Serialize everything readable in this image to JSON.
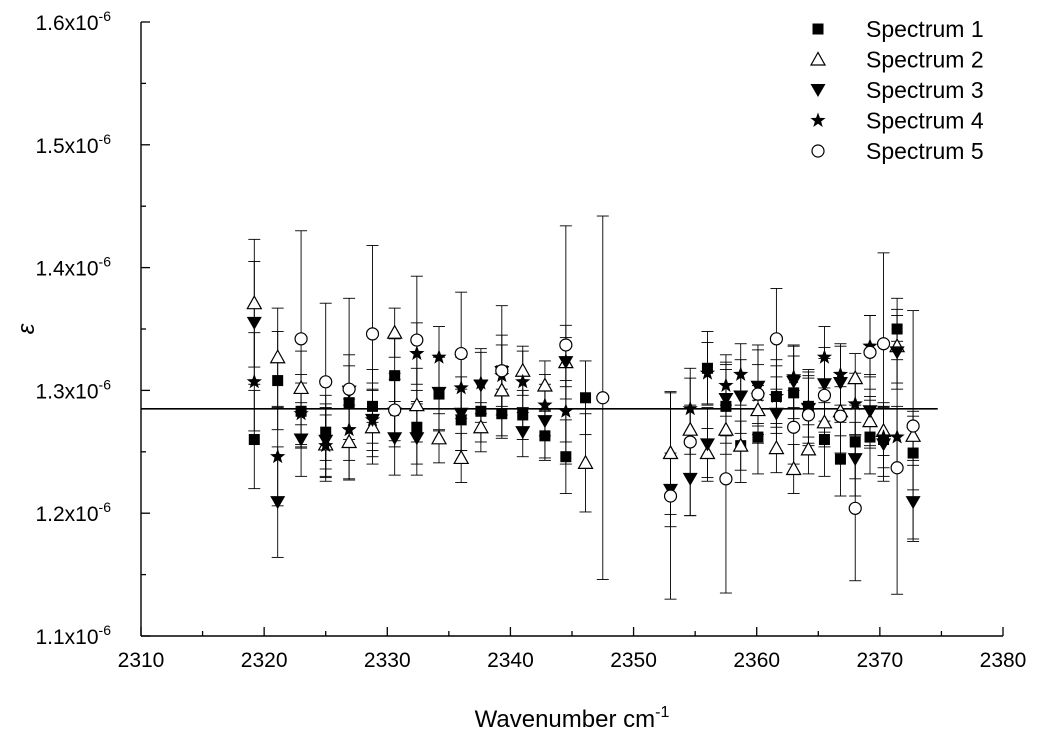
{
  "chart_data": {
    "type": "scatter",
    "xlabel": "Wavenumber cm",
    "xlabel_sup": "-1",
    "ylabel": "ε",
    "xlim": [
      2310,
      2380
    ],
    "ylim": [
      1.1e-06,
      1.6e-06
    ],
    "x_ticks": [
      2310,
      2320,
      2330,
      2340,
      2350,
      2360,
      2370,
      2380
    ],
    "y_ticks": [
      {
        "value": 1.1e-06,
        "mantissa": "1.1x10",
        "exp": "-6"
      },
      {
        "value": 1.2e-06,
        "mantissa": "1.2x10",
        "exp": "-6"
      },
      {
        "value": 1.3e-06,
        "mantissa": "1.3x10",
        "exp": "-6"
      },
      {
        "value": 1.4e-06,
        "mantissa": "1.4x10",
        "exp": "-6"
      },
      {
        "value": 1.5e-06,
        "mantissa": "1.5x10",
        "exp": "-6"
      },
      {
        "value": 1.6e-06,
        "mantissa": "1.6x10",
        "exp": "-6"
      }
    ],
    "reference_line": {
      "y": 1.285e-06,
      "x_range": [
        2310,
        2374.7
      ]
    },
    "legend_position": "top-right",
    "series": [
      {
        "name": "Spectrum 1",
        "marker": "square-filled",
        "points": [
          {
            "x": 2319.2,
            "y": 1.26e-06,
            "err": 4e-08
          },
          {
            "x": 2321.1,
            "y": 1.308e-06,
            "err": 4e-08
          },
          {
            "x": 2323.0,
            "y": 1.283e-06,
            "err": 3e-08
          },
          {
            "x": 2325.0,
            "y": 1.266e-06,
            "err": 3e-08
          },
          {
            "x": 2326.9,
            "y": 1.29e-06,
            "err": 3e-08
          },
          {
            "x": 2328.8,
            "y": 1.287e-06,
            "err": 3e-08
          },
          {
            "x": 2330.6,
            "y": 1.312e-06,
            "err": 3e-08
          },
          {
            "x": 2332.4,
            "y": 1.27e-06,
            "err": 3e-08
          },
          {
            "x": 2334.2,
            "y": 1.297e-06,
            "err": 3e-08
          },
          {
            "x": 2336.0,
            "y": 1.276e-06,
            "err": 2.5e-08
          },
          {
            "x": 2337.6,
            "y": 1.283e-06,
            "err": 2.5e-08
          },
          {
            "x": 2339.3,
            "y": 1.281e-06,
            "err": 2e-08
          },
          {
            "x": 2341.0,
            "y": 1.28e-06,
            "err": 2e-08
          },
          {
            "x": 2342.8,
            "y": 1.263e-06,
            "err": 2e-08
          },
          {
            "x": 2344.5,
            "y": 1.246e-06,
            "err": 3e-08
          },
          {
            "x": 2346.1,
            "y": 1.294e-06,
            "err": 3e-08
          },
          {
            "x": 2356.0,
            "y": 1.318e-06,
            "err": 3e-08
          },
          {
            "x": 2357.5,
            "y": 1.287e-06,
            "err": 3e-08
          },
          {
            "x": 2358.7,
            "y": 1.255e-06,
            "err": 3e-08
          },
          {
            "x": 2360.1,
            "y": 1.262e-06,
            "err": 3e-08
          },
          {
            "x": 2361.6,
            "y": 1.295e-06,
            "err": 3e-08
          },
          {
            "x": 2363.0,
            "y": 1.298e-06,
            "err": 3e-08
          },
          {
            "x": 2364.2,
            "y": 1.287e-06,
            "err": 3e-08
          },
          {
            "x": 2365.5,
            "y": 1.26e-06,
            "err": 3e-08
          },
          {
            "x": 2366.8,
            "y": 1.244e-06,
            "err": 3e-08
          },
          {
            "x": 2368.0,
            "y": 1.258e-06,
            "err": 3e-08
          },
          {
            "x": 2369.2,
            "y": 1.262e-06,
            "err": 3e-08
          },
          {
            "x": 2370.3,
            "y": 1.26e-06,
            "err": 3e-08
          },
          {
            "x": 2371.4,
            "y": 1.35e-06,
            "err": 2.5e-08
          },
          {
            "x": 2372.7,
            "y": 1.249e-06,
            "err": 3e-08
          }
        ]
      },
      {
        "name": "Spectrum 2",
        "marker": "triangle-up-open",
        "points": [
          {
            "x": 2319.2,
            "y": 1.371e-06,
            "err": 5.2e-08
          },
          {
            "x": 2321.1,
            "y": 1.327e-06,
            "err": 4e-08
          },
          {
            "x": 2323.0,
            "y": 1.302e-06,
            "err": 3e-08
          },
          {
            "x": 2325.0,
            "y": 1.256e-06,
            "err": 3e-08
          },
          {
            "x": 2326.9,
            "y": 1.258e-06,
            "err": 3e-08
          },
          {
            "x": 2328.8,
            "y": 1.27e-06,
            "err": 3e-08
          },
          {
            "x": 2330.6,
            "y": 1.347e-06,
            "err": 2e-08
          },
          {
            "x": 2332.4,
            "y": 1.288e-06,
            "err": 3e-08
          },
          {
            "x": 2334.2,
            "y": 1.261e-06,
            "err": 2e-08
          },
          {
            "x": 2336.0,
            "y": 1.245e-06,
            "err": 2e-08
          },
          {
            "x": 2337.6,
            "y": 1.27e-06,
            "err": 2e-08
          },
          {
            "x": 2339.3,
            "y": 1.3e-06,
            "err": 2e-08
          },
          {
            "x": 2341.0,
            "y": 1.316e-06,
            "err": 2e-08
          },
          {
            "x": 2342.8,
            "y": 1.304e-06,
            "err": 2e-08
          },
          {
            "x": 2344.5,
            "y": 1.323e-06,
            "err": 2e-08
          },
          {
            "x": 2346.1,
            "y": 1.241e-06,
            "err": 4e-08
          },
          {
            "x": 2353.0,
            "y": 1.249e-06,
            "err": 5e-08
          },
          {
            "x": 2354.6,
            "y": 1.268e-06,
            "err": 2e-08
          },
          {
            "x": 2356.0,
            "y": 1.249e-06,
            "err": 2e-08
          },
          {
            "x": 2357.5,
            "y": 1.268e-06,
            "err": 2e-08
          },
          {
            "x": 2358.7,
            "y": 1.255e-06,
            "err": 2e-08
          },
          {
            "x": 2360.1,
            "y": 1.284e-06,
            "err": 2e-08
          },
          {
            "x": 2361.6,
            "y": 1.253e-06,
            "err": 2e-08
          },
          {
            "x": 2363.0,
            "y": 1.236e-06,
            "err": 2e-08
          },
          {
            "x": 2364.2,
            "y": 1.252e-06,
            "err": 2e-08
          },
          {
            "x": 2365.5,
            "y": 1.274e-06,
            "err": 2e-08
          },
          {
            "x": 2366.8,
            "y": 1.283e-06,
            "err": 2e-08
          },
          {
            "x": 2368.0,
            "y": 1.31e-06,
            "err": 2e-08
          },
          {
            "x": 2369.2,
            "y": 1.275e-06,
            "err": 2e-08
          },
          {
            "x": 2370.3,
            "y": 1.267e-06,
            "err": 2e-08
          },
          {
            "x": 2371.4,
            "y": 1.336e-06,
            "err": 3e-08
          },
          {
            "x": 2372.7,
            "y": 1.263e-06,
            "err": 2e-08
          }
        ]
      },
      {
        "name": "Spectrum 3",
        "marker": "triangle-down-filled",
        "points": [
          {
            "x": 2319.2,
            "y": 1.355e-06,
            "err": 5e-08
          },
          {
            "x": 2321.1,
            "y": 1.209e-06,
            "err": 4.5e-08
          },
          {
            "x": 2323.0,
            "y": 1.26e-06,
            "err": 3e-08
          },
          {
            "x": 2325.0,
            "y": 1.259e-06,
            "err": 3e-08
          },
          {
            "x": 2326.9,
            "y": 1.299e-06,
            "err": 3e-08
          },
          {
            "x": 2328.8,
            "y": 1.276e-06,
            "err": 3e-08
          },
          {
            "x": 2330.6,
            "y": 1.261e-06,
            "err": 3e-08
          },
          {
            "x": 2332.4,
            "y": 1.261e-06,
            "err": 3e-08
          },
          {
            "x": 2334.2,
            "y": 1.298e-06,
            "err": 3e-08
          },
          {
            "x": 2336.0,
            "y": 1.281e-06,
            "err": 3e-08
          },
          {
            "x": 2337.6,
            "y": 1.304e-06,
            "err": 3e-08
          },
          {
            "x": 2339.3,
            "y": 1.315e-06,
            "err": 3e-08
          },
          {
            "x": 2341.0,
            "y": 1.266e-06,
            "err": 2e-08
          },
          {
            "x": 2342.8,
            "y": 1.275e-06,
            "err": 3e-08
          },
          {
            "x": 2344.5,
            "y": 1.323e-06,
            "err": 3e-08
          },
          {
            "x": 2353.0,
            "y": 1.219e-06,
            "err": 3e-08
          },
          {
            "x": 2354.6,
            "y": 1.228e-06,
            "err": 3e-08
          },
          {
            "x": 2356.0,
            "y": 1.256e-06,
            "err": 3e-08
          },
          {
            "x": 2357.5,
            "y": 1.293e-06,
            "err": 3e-08
          },
          {
            "x": 2358.7,
            "y": 1.295e-06,
            "err": 3e-08
          },
          {
            "x": 2360.1,
            "y": 1.303e-06,
            "err": 3e-08
          },
          {
            "x": 2361.6,
            "y": 1.281e-06,
            "err": 3e-08
          },
          {
            "x": 2363.0,
            "y": 1.307e-06,
            "err": 3e-08
          },
          {
            "x": 2364.2,
            "y": 1.285e-06,
            "err": 3e-08
          },
          {
            "x": 2365.5,
            "y": 1.305e-06,
            "err": 3e-08
          },
          {
            "x": 2366.8,
            "y": 1.306e-06,
            "err": 3e-08
          },
          {
            "x": 2368.0,
            "y": 1.244e-06,
            "err": 3e-08
          },
          {
            "x": 2369.2,
            "y": 1.283e-06,
            "err": 3e-08
          },
          {
            "x": 2370.3,
            "y": 1.256e-06,
            "err": 3e-08
          },
          {
            "x": 2371.4,
            "y": 1.331e-06,
            "err": 3e-08
          },
          {
            "x": 2372.7,
            "y": 1.209e-06,
            "err": 3e-08
          }
        ]
      },
      {
        "name": "Spectrum 4",
        "marker": "star-filled",
        "points": [
          {
            "x": 2319.2,
            "y": 1.307e-06,
            "err": 4e-08
          },
          {
            "x": 2321.1,
            "y": 1.246e-06,
            "err": 4e-08
          },
          {
            "x": 2323.0,
            "y": 1.281e-06,
            "err": 2.5e-08
          },
          {
            "x": 2325.0,
            "y": 1.255e-06,
            "err": 2.5e-08
          },
          {
            "x": 2326.9,
            "y": 1.268e-06,
            "err": 2.5e-08
          },
          {
            "x": 2328.8,
            "y": 1.276e-06,
            "err": 2.5e-08
          },
          {
            "x": 2330.6,
            "y": 1.284e-06,
            "err": 2.5e-08
          },
          {
            "x": 2332.4,
            "y": 1.33e-06,
            "err": 2.5e-08
          },
          {
            "x": 2334.2,
            "y": 1.327e-06,
            "err": 2.5e-08
          },
          {
            "x": 2336.0,
            "y": 1.302e-06,
            "err": 2.5e-08
          },
          {
            "x": 2337.6,
            "y": 1.306e-06,
            "err": 2.5e-08
          },
          {
            "x": 2339.3,
            "y": 1.312e-06,
            "err": 2.5e-08
          },
          {
            "x": 2341.0,
            "y": 1.307e-06,
            "err": 2.5e-08
          },
          {
            "x": 2342.8,
            "y": 1.288e-06,
            "err": 2.5e-08
          },
          {
            "x": 2344.5,
            "y": 1.283e-06,
            "err": 2.5e-08
          },
          {
            "x": 2354.6,
            "y": 1.285e-06,
            "err": 2.5e-08
          },
          {
            "x": 2356.0,
            "y": 1.314e-06,
            "err": 2.5e-08
          },
          {
            "x": 2357.5,
            "y": 1.304e-06,
            "err": 2.5e-08
          },
          {
            "x": 2358.7,
            "y": 1.313e-06,
            "err": 2.5e-08
          },
          {
            "x": 2360.1,
            "y": 1.296e-06,
            "err": 2.5e-08
          },
          {
            "x": 2361.6,
            "y": 1.295e-06,
            "err": 2.5e-08
          },
          {
            "x": 2363.0,
            "y": 1.311e-06,
            "err": 2.5e-08
          },
          {
            "x": 2364.2,
            "y": 1.287e-06,
            "err": 2.5e-08
          },
          {
            "x": 2365.5,
            "y": 1.327e-06,
            "err": 2.5e-08
          },
          {
            "x": 2366.8,
            "y": 1.313e-06,
            "err": 2.5e-08
          },
          {
            "x": 2368.0,
            "y": 1.289e-06,
            "err": 2.5e-08
          },
          {
            "x": 2369.2,
            "y": 1.336e-06,
            "err": 2.5e-08
          },
          {
            "x": 2370.3,
            "y": 1.262e-06,
            "err": 2.5e-08
          },
          {
            "x": 2371.4,
            "y": 1.262e-06,
            "err": 2.5e-08
          }
        ]
      },
      {
        "name": "Spectrum 5",
        "marker": "circle-open",
        "points": [
          {
            "x": 2323.0,
            "y": 1.342e-06,
            "err": 8.8e-08
          },
          {
            "x": 2325.0,
            "y": 1.307e-06,
            "err": 6.4e-08
          },
          {
            "x": 2326.9,
            "y": 1.301e-06,
            "err": 7.4e-08
          },
          {
            "x": 2328.8,
            "y": 1.346e-06,
            "err": 7.2e-08
          },
          {
            "x": 2330.6,
            "y": 1.284e-06,
            "err": 3e-08
          },
          {
            "x": 2332.4,
            "y": 1.341e-06,
            "err": 5.2e-08
          },
          {
            "x": 2336.0,
            "y": 1.33e-06,
            "err": 5e-08
          },
          {
            "x": 2339.3,
            "y": 1.316e-06,
            "err": 5.3e-08
          },
          {
            "x": 2344.5,
            "y": 1.337e-06,
            "err": 9.7e-08
          },
          {
            "x": 2347.5,
            "y": 1.294e-06,
            "err": 1.48e-07
          },
          {
            "x": 2353.0,
            "y": 1.214e-06,
            "err": 8.4e-08
          },
          {
            "x": 2354.6,
            "y": 1.258e-06,
            "err": 6e-08
          },
          {
            "x": 2357.5,
            "y": 1.228e-06,
            "err": 9.3e-08
          },
          {
            "x": 2360.1,
            "y": 1.297e-06,
            "err": 4e-08
          },
          {
            "x": 2361.6,
            "y": 1.342e-06,
            "err": 4.1e-08
          },
          {
            "x": 2363.0,
            "y": 1.27e-06,
            "err": 3e-08
          },
          {
            "x": 2364.2,
            "y": 1.28e-06,
            "err": 3e-08
          },
          {
            "x": 2365.5,
            "y": 1.296e-06,
            "err": 3e-08
          },
          {
            "x": 2366.8,
            "y": 1.279e-06,
            "err": 3e-08
          },
          {
            "x": 2368.0,
            "y": 1.204e-06,
            "err": 5.9e-08
          },
          {
            "x": 2369.2,
            "y": 1.331e-06,
            "err": 3e-08
          },
          {
            "x": 2370.3,
            "y": 1.338e-06,
            "err": 7.4e-08
          },
          {
            "x": 2371.4,
            "y": 1.237e-06,
            "err": 1.03e-07
          },
          {
            "x": 2372.7,
            "y": 1.271e-06,
            "err": 9.4e-08
          }
        ]
      }
    ]
  }
}
